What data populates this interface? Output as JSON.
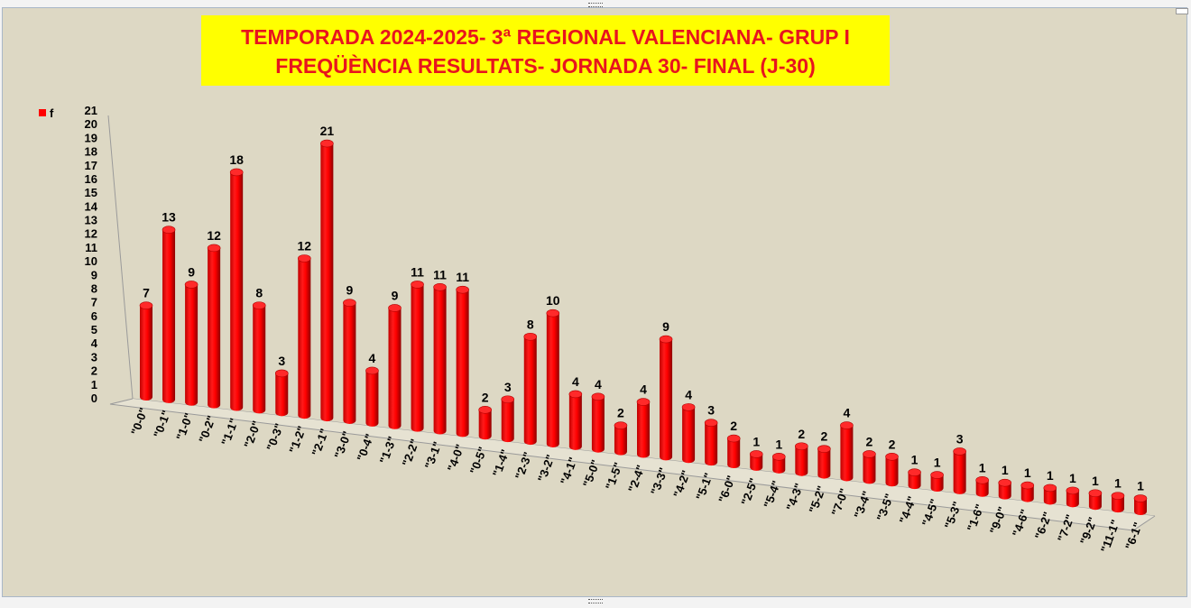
{
  "chart_data": {
    "type": "bar",
    "title": "TEMPORADA 2024-2025-  3ª REGIONAL VALENCIANA- GRUP I",
    "subtitle": "FREQÜÈNCIA RESULTATS- JORNADA 30- FINAL (J-30)",
    "legend": {
      "label": "f",
      "position": "top-left"
    },
    "ylim": [
      0,
      21
    ],
    "yticks": [
      "0",
      "1",
      "2",
      "3",
      "4",
      "5",
      "6",
      "7",
      "8",
      "9",
      "10",
      "11",
      "12",
      "13",
      "14",
      "15",
      "16",
      "17",
      "18",
      "19",
      "20",
      "21"
    ],
    "categories": [
      "\"0-0\"",
      "\"0-1\"",
      "\"1-0\"",
      "\"0-2\"",
      "\"1-1\"",
      "\"2-0\"",
      "\"0-3\"",
      "\"1-2\"",
      "\"2-1\"",
      "\"3-0\"",
      "\"0-4\"",
      "\"1-3\"",
      "\"2-2\"",
      "\"3-1\"",
      "\"4-0\"",
      "\"0-5\"",
      "\"1-4\"",
      "\"2-3\"",
      "\"3-2\"",
      "\"4-1\"",
      "\"5-0\"",
      "\"1-5\"",
      "\"2-4\"",
      "\"3-3\"",
      "\"4-2\"",
      "\"5-1\"",
      "\"6-0\"",
      "\"2-5\"",
      "\"5-4\"",
      "\"4-3\"",
      "\"5-2\"",
      "\"7-0\"",
      "\"3-4\"",
      "\"3-5\"",
      "\"4-4\"",
      "\"4-5\"",
      "\"5-3\"",
      "\"1-6\"",
      "\"9-0\"",
      "\"4-6\"",
      "\"6-2\"",
      "\"7-2\"",
      "\"9-2\"",
      "\"11-1\"",
      "\"6-1\""
    ],
    "series": [
      {
        "name": "f",
        "color": "#ff0000",
        "values": [
          7,
          13,
          9,
          12,
          18,
          8,
          3,
          12,
          21,
          9,
          4,
          9,
          11,
          11,
          11,
          2,
          3,
          8,
          10,
          4,
          4,
          2,
          4,
          9,
          4,
          3,
          2,
          1,
          1,
          2,
          2,
          4,
          2,
          2,
          1,
          1,
          3,
          1,
          1,
          1,
          1,
          1,
          1,
          1,
          1
        ]
      }
    ],
    "style": "3d-cylinder",
    "grid": false
  }
}
